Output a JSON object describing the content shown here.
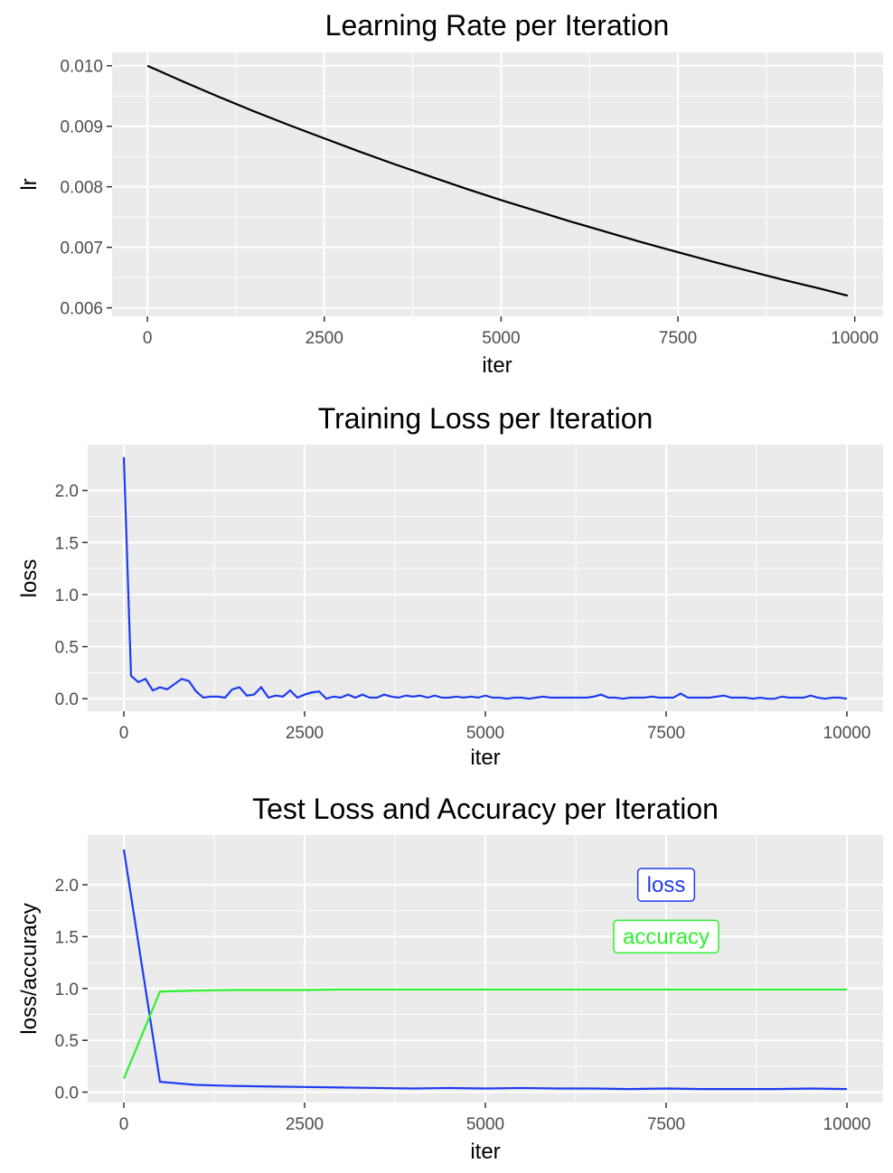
{
  "chart_data": [
    {
      "type": "line",
      "title": "Learning Rate per Iteration",
      "xlabel": "iter",
      "ylabel": "lr",
      "xlim": [
        -500,
        10400
      ],
      "ylim": [
        0.00586,
        0.01022
      ],
      "x_ticks": [
        0,
        2500,
        5000,
        7500,
        10000
      ],
      "x_tick_labels": [
        "0",
        "2500",
        "5000",
        "7500",
        "10000"
      ],
      "y_ticks": [
        0.006,
        0.007,
        0.008,
        0.009,
        0.01
      ],
      "y_tick_labels": [
        "0.006",
        "0.007",
        "0.008",
        "0.009",
        "0.010"
      ],
      "grid": true,
      "series": [
        {
          "color": "#000000",
          "x": [
            0,
            500,
            1000,
            1500,
            2000,
            2500,
            3000,
            3500,
            4000,
            4500,
            5000,
            5500,
            6000,
            6500,
            7000,
            7500,
            8000,
            8500,
            9000,
            9500,
            9900
          ],
          "y": [
            0.01,
            0.00974,
            0.00949,
            0.00925,
            0.00902,
            0.0088,
            0.00858,
            0.00837,
            0.00817,
            0.00797,
            0.00778,
            0.0076,
            0.00742,
            0.00725,
            0.00708,
            0.00692,
            0.00676,
            0.00661,
            0.00646,
            0.00632,
            0.0062
          ]
        }
      ]
    },
    {
      "type": "line",
      "title": "Training Loss per Iteration",
      "xlabel": "iter",
      "ylabel": "loss",
      "xlim": [
        -500,
        10500
      ],
      "ylim": [
        -0.12,
        2.44
      ],
      "x_ticks": [
        0,
        2500,
        5000,
        7500,
        10000
      ],
      "x_tick_labels": [
        "0",
        "2500",
        "5000",
        "7500",
        "10000"
      ],
      "y_ticks": [
        0.0,
        0.5,
        1.0,
        1.5,
        2.0
      ],
      "y_tick_labels": [
        "0.0",
        "0.5",
        "1.0",
        "1.5",
        "2.0"
      ],
      "grid": true,
      "series": [
        {
          "color": "#1e3cf0",
          "x": [
            0,
            100,
            200,
            300,
            400,
            500,
            600,
            700,
            800,
            900,
            1000,
            1100,
            1200,
            1300,
            1400,
            1500,
            1600,
            1700,
            1800,
            1900,
            2000,
            2100,
            2200,
            2300,
            2400,
            2500,
            2600,
            2700,
            2800,
            2900,
            3000,
            3100,
            3200,
            3300,
            3400,
            3500,
            3600,
            3700,
            3800,
            3900,
            4000,
            4100,
            4200,
            4300,
            4400,
            4500,
            4600,
            4700,
            4800,
            4900,
            5000,
            5100,
            5200,
            5300,
            5400,
            5500,
            5600,
            5700,
            5800,
            5900,
            6000,
            6100,
            6200,
            6300,
            6400,
            6500,
            6600,
            6700,
            6800,
            6900,
            7000,
            7100,
            7200,
            7300,
            7400,
            7500,
            7600,
            7700,
            7800,
            7900,
            8000,
            8100,
            8200,
            8300,
            8400,
            8500,
            8600,
            8700,
            8800,
            8900,
            9000,
            9100,
            9200,
            9300,
            9400,
            9500,
            9600,
            9700,
            9800,
            9900,
            10000
          ],
          "y": [
            2.32,
            0.22,
            0.16,
            0.19,
            0.08,
            0.11,
            0.09,
            0.14,
            0.19,
            0.17,
            0.07,
            0.01,
            0.02,
            0.02,
            0.01,
            0.09,
            0.11,
            0.03,
            0.04,
            0.11,
            0.01,
            0.03,
            0.02,
            0.08,
            0.01,
            0.04,
            0.06,
            0.07,
            0.0,
            0.02,
            0.01,
            0.04,
            0.01,
            0.04,
            0.01,
            0.01,
            0.04,
            0.02,
            0.01,
            0.03,
            0.02,
            0.03,
            0.01,
            0.03,
            0.01,
            0.01,
            0.02,
            0.01,
            0.02,
            0.01,
            0.03,
            0.01,
            0.01,
            0.0,
            0.01,
            0.01,
            0.0,
            0.01,
            0.02,
            0.01,
            0.01,
            0.01,
            0.01,
            0.01,
            0.01,
            0.02,
            0.04,
            0.01,
            0.01,
            0.0,
            0.01,
            0.01,
            0.01,
            0.02,
            0.01,
            0.01,
            0.01,
            0.05,
            0.01,
            0.01,
            0.01,
            0.01,
            0.02,
            0.03,
            0.01,
            0.01,
            0.01,
            0.0,
            0.01,
            0.0,
            0.0,
            0.02,
            0.01,
            0.01,
            0.01,
            0.03,
            0.01,
            0.0,
            0.01,
            0.01,
            0.0
          ]
        }
      ]
    },
    {
      "type": "line",
      "title": "Test Loss and Accuracy per Iteration",
      "xlabel": "iter",
      "ylabel": "loss/accuracy",
      "xlim": [
        -500,
        10500
      ],
      "ylim": [
        -0.1,
        2.48
      ],
      "x_ticks": [
        0,
        2500,
        5000,
        7500,
        10000
      ],
      "x_tick_labels": [
        "0",
        "2500",
        "5000",
        "7500",
        "10000"
      ],
      "y_ticks": [
        0.0,
        0.5,
        1.0,
        1.5,
        2.0
      ],
      "y_tick_labels": [
        "0.0",
        "0.5",
        "1.0",
        "1.5",
        "2.0"
      ],
      "grid": true,
      "series": [
        {
          "name": "loss",
          "color": "#1e3cf0",
          "x": [
            0,
            500,
            1000,
            1500,
            2000,
            2500,
            3000,
            3500,
            4000,
            4500,
            5000,
            5500,
            6000,
            6500,
            7000,
            7500,
            8000,
            8500,
            9000,
            9500,
            10000
          ],
          "y": [
            2.34,
            0.1,
            0.07,
            0.06,
            0.055,
            0.05,
            0.045,
            0.04,
            0.035,
            0.04,
            0.035,
            0.04,
            0.035,
            0.035,
            0.03,
            0.035,
            0.03,
            0.03,
            0.03,
            0.035,
            0.03
          ]
        },
        {
          "name": "accuracy",
          "color": "#2ef02e",
          "x": [
            0,
            500,
            1000,
            1500,
            2000,
            2500,
            3000,
            3500,
            4000,
            4500,
            5000,
            5500,
            6000,
            6500,
            7000,
            7500,
            8000,
            8500,
            9000,
            9500,
            10000
          ],
          "y": [
            0.13,
            0.97,
            0.98,
            0.985,
            0.985,
            0.985,
            0.99,
            0.99,
            0.99,
            0.99,
            0.99,
            0.99,
            0.99,
            0.99,
            0.99,
            0.99,
            0.99,
            0.99,
            0.99,
            0.99,
            0.99
          ]
        }
      ],
      "annotations": [
        {
          "text": "loss",
          "x": 7500,
          "y": 2.0,
          "color": "#1e3cf0"
        },
        {
          "text": "accuracy",
          "x": 7500,
          "y": 1.5,
          "color": "#2ef02e"
        }
      ]
    }
  ]
}
